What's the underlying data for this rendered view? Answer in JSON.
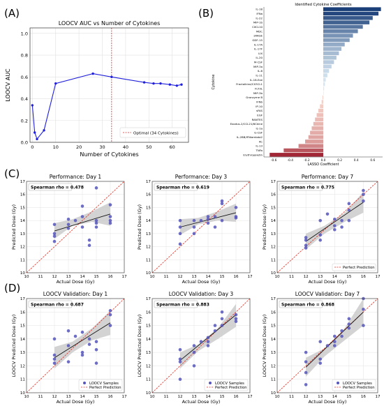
{
  "colors": {
    "line": "#2020dd",
    "optimal": "#d62728",
    "points": "#5555bb",
    "fit": "#111111",
    "band": "#c8c8c8",
    "perfect": "#e8291c",
    "bar_pos": "#1a3f78",
    "bar_neg": "#9b1a2a"
  },
  "panel_labels": [
    "(A)",
    "(B)",
    "(C)",
    "(D)"
  ],
  "chart_data": [
    {
      "id": "A",
      "type": "line",
      "title": "LOOCV AUC vs Number of Cytokines",
      "xlabel": "Number of Cytokines",
      "ylabel": "LOOCV AUC",
      "xlim": [
        -1,
        67
      ],
      "ylim": [
        0.0,
        1.05
      ],
      "xticks": [
        0,
        10,
        20,
        30,
        40,
        50,
        60
      ],
      "yticks": [
        0.0,
        0.2,
        0.4,
        0.6,
        0.8,
        1.0
      ],
      "ytick_labels": [
        "0.0",
        "0.2",
        "0.4",
        "0.6",
        "0.8",
        "1.0"
      ],
      "x": [
        0,
        1,
        2,
        5,
        10,
        26,
        34,
        48,
        52,
        55,
        59,
        62,
        64
      ],
      "y": [
        0.34,
        0.09,
        0.03,
        0.11,
        0.54,
        0.63,
        0.6,
        0.55,
        0.54,
        0.54,
        0.53,
        0.52,
        0.53
      ],
      "optimal_x": 34,
      "legend": "Optimal (34 Cytokines)",
      "grid": true
    },
    {
      "id": "B",
      "type": "bar",
      "orientation": "horizontal",
      "title": "Identified Cytokine Coefficients",
      "xlabel": "LASSO Coefficient",
      "ylabel": "Cytokine",
      "xlim": [
        -0.72,
        0.72
      ],
      "xticks": [
        -0.6,
        -0.4,
        -0.2,
        0.0,
        0.2,
        0.4,
        0.6
      ],
      "xtick_labels": [
        "-0.6",
        "-0.4",
        "-0.2",
        "0.0",
        "0.2",
        "0.4",
        "0.6"
      ],
      "categories": [
        "IL-18",
        "IFNa",
        "IL-22",
        "MIP-1b",
        "CXCL10",
        "MDC",
        "sRAGE",
        "GDF-15",
        "IL-17A",
        "IL-17F",
        "LIX",
        "IL-20",
        "M-CSF",
        "MIP-3a",
        "IL-6",
        "IL-11",
        "IL-18-Exe",
        "Fractalkine/CX3CL1",
        "FLT3L",
        "MIP-3b",
        "Granzyme B",
        "IFNb",
        "IP-10",
        "sFAS",
        "EGF",
        "RANTES",
        "Exodus-2/CCL21/6Ckine",
        "IL-1a",
        "G-CSF",
        "IL-2BB/IFNlambda2",
        "KC",
        "IL-13",
        "TNFa",
        "Erythropoietin"
      ],
      "values": [
        0.7,
        0.67,
        0.6,
        0.56,
        0.48,
        0.42,
        0.36,
        0.32,
        0.26,
        0.22,
        0.19,
        0.16,
        0.13,
        0.1,
        0.07,
        0.05,
        0.03,
        0.02,
        0.01,
        0.005,
        -0.01,
        -0.02,
        -0.04,
        -0.06,
        -0.08,
        -0.1,
        -0.12,
        -0.14,
        -0.16,
        -0.18,
        -0.22,
        -0.3,
        -0.48,
        -0.65
      ]
    },
    {
      "id": "C1",
      "type": "scatter",
      "title": "Performance: Day 1",
      "annotation": "Spearman rho = 0.478",
      "xlabel": "Actual Dose (Gy)",
      "ylabel": "Predicted Dose (Gy)",
      "xlim": [
        10,
        17
      ],
      "ylim": [
        10,
        17
      ],
      "ticks": [
        10,
        11,
        12,
        13,
        14,
        15,
        16,
        17
      ],
      "x": [
        12,
        12,
        12,
        12,
        13,
        13,
        13,
        13.5,
        14,
        14,
        14,
        14.5,
        14.5,
        15,
        15,
        15,
        15,
        16,
        16,
        16,
        16
      ],
      "y": [
        13.7,
        13.0,
        12.8,
        12.4,
        13.7,
        13.4,
        14.1,
        14.0,
        15.1,
        14.3,
        13.5,
        12.5,
        12.1,
        16.5,
        14.0,
        13.8,
        13.5,
        15.2,
        14.3,
        14.0,
        13.8
      ],
      "fit": {
        "x": [
          12,
          16
        ],
        "y": [
          13.2,
          14.5
        ]
      },
      "band": {
        "lo": [
          12.6,
          13.6,
          13.9,
          13.6
        ],
        "hi": [
          13.8,
          14.1,
          14.7,
          15.4
        ],
        "x": [
          12,
          13.3,
          14.7,
          16
        ]
      },
      "legend": ""
    },
    {
      "id": "C3",
      "type": "scatter",
      "title": "Performance: Day 3",
      "annotation": "Spearman rho = 0.619",
      "xlabel": "Actual Dose (Gy)",
      "ylabel": "Predicted Dose (Gy)",
      "xlim": [
        10,
        17
      ],
      "ylim": [
        10,
        17
      ],
      "ticks": [
        10,
        11,
        12,
        13,
        14,
        15,
        16,
        17
      ],
      "x": [
        12,
        12,
        12,
        12,
        13,
        13,
        13,
        13.5,
        14,
        14,
        14,
        14.5,
        14.5,
        15,
        15,
        15,
        16,
        16,
        16
      ],
      "y": [
        14.0,
        13.5,
        13.0,
        12.2,
        14.0,
        13.5,
        13.0,
        14.0,
        14.3,
        14.1,
        13.8,
        14.3,
        13.5,
        15.5,
        15.3,
        14.0,
        15.0,
        14.3,
        14.2
      ],
      "fit": {
        "x": [
          12,
          16
        ],
        "y": [
          13.5,
          14.6
        ]
      },
      "band": {
        "lo": [
          12.9,
          13.7,
          14.0,
          13.9
        ],
        "hi": [
          14.1,
          14.2,
          14.7,
          15.3
        ],
        "x": [
          12,
          13.3,
          14.7,
          16
        ]
      },
      "legend": ""
    },
    {
      "id": "C7",
      "type": "scatter",
      "title": "Performance: Day 7",
      "annotation": "Spearman rho = 0.775",
      "xlabel": "Actual Dose (Gy)",
      "ylabel": "Predicted Dose (Gy)",
      "xlim": [
        10,
        17
      ],
      "ylim": [
        10,
        17
      ],
      "ticks": [
        10,
        11,
        12,
        13,
        14,
        15,
        16,
        17
      ],
      "x": [
        12,
        12,
        12,
        12,
        13,
        13,
        13,
        13.5,
        14,
        14,
        14,
        14.5,
        14.5,
        15,
        15,
        15,
        16,
        16,
        16
      ],
      "y": [
        12.7,
        12.5,
        12.1,
        11.9,
        12.9,
        12.5,
        14.0,
        14.5,
        14.1,
        13.6,
        13.3,
        14.0,
        13.5,
        15.3,
        14.8,
        14.0,
        16.3,
        16.0,
        15.5
      ],
      "fit": {
        "x": [
          12,
          16
        ],
        "y": [
          12.4,
          15.4
        ]
      },
      "band": {
        "lo": [
          11.8,
          13.0,
          13.9,
          14.6
        ],
        "hi": [
          13.0,
          13.6,
          14.6,
          16.2
        ],
        "x": [
          12,
          13.3,
          14.7,
          16
        ]
      },
      "legend": "Perfect Prediction"
    },
    {
      "id": "D1",
      "type": "scatter",
      "title": "LOOCV Validation: Day 1",
      "annotation": "Spearman rho = 0.687",
      "xlabel": "Actual Dose (Gy)",
      "ylabel": "LOOCV Predicted Dose (Gy)",
      "xlim": [
        10,
        17
      ],
      "ylim": [
        10,
        17
      ],
      "ticks": [
        10,
        11,
        12,
        13,
        14,
        15,
        16,
        17
      ],
      "x": [
        12,
        12,
        12,
        12,
        13,
        13,
        13,
        13.5,
        14,
        14,
        14,
        14.5,
        14.5,
        15,
        15,
        15,
        16,
        16,
        16
      ],
      "y": [
        14.0,
        12.8,
        12.5,
        12.2,
        14.6,
        13.5,
        12.3,
        14.2,
        14.5,
        13.0,
        12.8,
        14.0,
        13.6,
        13.8,
        13.2,
        12.2,
        16.1,
        15.8,
        15.0
      ],
      "fit": {
        "x": [
          12,
          16
        ],
        "y": [
          12.6,
          15.2
        ]
      },
      "band": {
        "lo": [
          11.8,
          13.0,
          13.9,
          14.3
        ],
        "hi": [
          13.4,
          13.8,
          14.8,
          16.1
        ],
        "x": [
          12,
          13.3,
          14.7,
          16
        ]
      },
      "legend": "LOOCV Samples"
    },
    {
      "id": "D3",
      "type": "scatter",
      "title": "LOOCV Validation: Day 3",
      "annotation": "Spearman rho = 0.883",
      "xlabel": "Actual Dose (Gy)",
      "ylabel": "LOOCV Predicted Dose (Gy)",
      "xlim": [
        10,
        17
      ],
      "ylim": [
        10,
        17
      ],
      "ticks": [
        10,
        11,
        12,
        13,
        14,
        15,
        16,
        17
      ],
      "x": [
        12,
        12,
        12,
        12,
        13,
        13,
        13,
        13.5,
        14,
        14,
        14,
        14.5,
        14.5,
        15,
        15,
        15,
        16,
        16,
        16
      ],
      "y": [
        13.2,
        12.5,
        12.3,
        11.0,
        13.5,
        13.0,
        12.0,
        13.8,
        14.1,
        13.8,
        13.5,
        15.0,
        14.6,
        16.0,
        15.5,
        15.0,
        15.8,
        15.5,
        15.3
      ],
      "fit": {
        "x": [
          12,
          16
        ],
        "y": [
          12.4,
          15.8
        ]
      },
      "band": {
        "lo": [
          11.8,
          13.1,
          14.0,
          14.9
        ],
        "hi": [
          13.0,
          13.6,
          14.8,
          16.6
        ],
        "x": [
          12,
          13.3,
          14.7,
          16
        ]
      },
      "legend": "LOOCV Samples"
    },
    {
      "id": "D7",
      "type": "scatter",
      "title": "LOOCV Validation: Day 7",
      "annotation": "Spearman rho = 0.868",
      "xlabel": "Actual Dose (Gy)",
      "ylabel": "LOOCV Predicted Dose (Gy)",
      "xlim": [
        10,
        17
      ],
      "ylim": [
        10,
        17
      ],
      "ticks": [
        10,
        11,
        12,
        13,
        14,
        15,
        16,
        17
      ],
      "x": [
        12,
        12,
        12,
        12,
        13,
        13,
        13,
        13.5,
        14,
        14,
        14,
        14.5,
        14.5,
        15,
        15,
        15,
        16,
        16,
        16
      ],
      "y": [
        13.0,
        12.3,
        11.5,
        10.6,
        13.8,
        12.5,
        12.2,
        13.5,
        14.2,
        13.8,
        13.5,
        14.6,
        14.2,
        15.5,
        15.1,
        14.8,
        17.0,
        16.2,
        15.0
      ],
      "fit": {
        "x": [
          12,
          16
        ],
        "y": [
          11.9,
          16.0
        ]
      },
      "band": {
        "lo": [
          11.2,
          12.7,
          13.9,
          15.0
        ],
        "hi": [
          12.6,
          13.3,
          14.8,
          17.0
        ],
        "x": [
          12,
          13.3,
          14.7,
          16
        ]
      },
      "legend": "LOOCV Samples"
    }
  ],
  "legend_perfect": "Perfect Prediction"
}
